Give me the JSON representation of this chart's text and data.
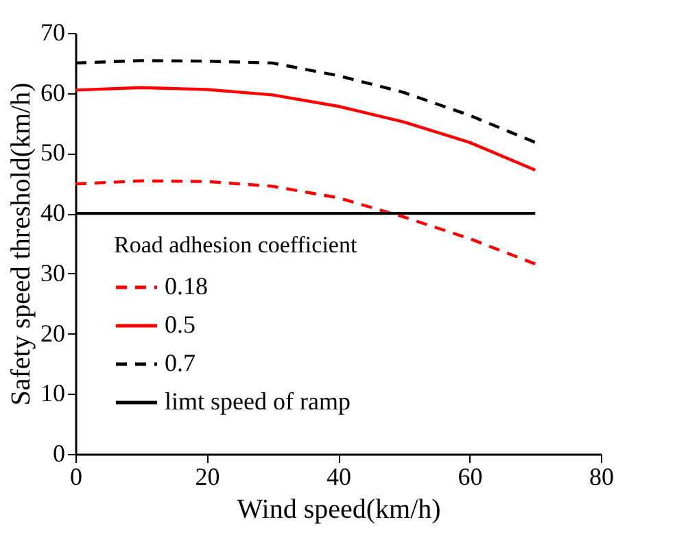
{
  "chart_data": {
    "type": "line",
    "xlabel": "Wind speed(km/h)",
    "ylabel": "Safety speed threshold(km/h)",
    "legend_title": "Road adhesion coefficient",
    "x": [
      0,
      10,
      20,
      30,
      40,
      50,
      60,
      70
    ],
    "series": [
      {
        "name": "0.18",
        "color": "#ff0000",
        "line_style": "dashed",
        "values": [
          44.9,
          45.4,
          45.3,
          44.5,
          42.6,
          39.4,
          35.8,
          31.6
        ]
      },
      {
        "name": "0.5",
        "color": "#ff0000",
        "line_style": "solid",
        "values": [
          60.5,
          60.9,
          60.6,
          59.7,
          57.8,
          55.2,
          51.8,
          47.2
        ]
      },
      {
        "name": "0.7",
        "color": "#000000",
        "line_style": "dashed",
        "values": [
          65.0,
          65.4,
          65.3,
          65.0,
          62.9,
          60.1,
          56.3,
          51.8
        ]
      },
      {
        "name": "limt speed of ramp",
        "color": "#000000",
        "line_style": "solid",
        "x": [
          0,
          70
        ],
        "values": [
          40,
          40
        ]
      }
    ],
    "xlim": [
      0,
      80
    ],
    "xticks": [
      0,
      20,
      40,
      60,
      80
    ],
    "ylim": [
      0,
      70
    ],
    "yticks": [
      0,
      10,
      20,
      30,
      40,
      50,
      60,
      70
    ],
    "grid": false,
    "legend": "bottom left",
    "marker": "none"
  }
}
